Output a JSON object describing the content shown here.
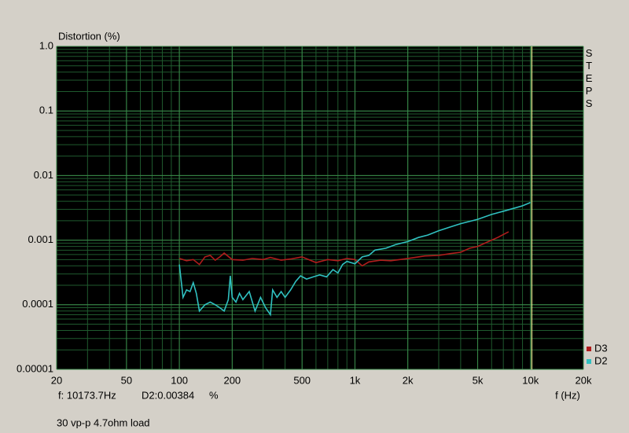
{
  "chart_data": {
    "type": "line",
    "title": "Distortion (%)",
    "xlabel": "f (Hz)",
    "side_label": "STEPS",
    "readout": [
      "f: 10173.7Hz",
      "D2:0.00384",
      "%"
    ],
    "note": "30 vp-p 4.7ohm load",
    "log_x": true,
    "log_y": true,
    "grid": true,
    "legend": "lower right",
    "cursor_x": 10173.7,
    "cursor_color": "#e8e890",
    "xlim": [
      20,
      20000
    ],
    "xticks": [
      20,
      50,
      100,
      200,
      500,
      {
        "value": 1000,
        "label": "1k"
      },
      {
        "value": 2000,
        "label": "2k"
      },
      {
        "value": 5000,
        "label": "5k"
      },
      {
        "value": 10000,
        "label": "10k"
      },
      {
        "value": 20000,
        "label": "20k"
      }
    ],
    "ylim": [
      1e-05,
      1
    ],
    "yticks": [
      {
        "value": 1,
        "label": "1.0"
      },
      0.1,
      0.01,
      0.001,
      0.0001,
      1e-05
    ],
    "series": [
      {
        "name": "D3",
        "color": "#b01c1c",
        "x": [
          100,
          110,
          120,
          130,
          140,
          150,
          160,
          170,
          180,
          200,
          230,
          260,
          300,
          330,
          380,
          430,
          500,
          600,
          700,
          800,
          900,
          1000,
          1100,
          1200,
          1400,
          1600,
          1800,
          2000,
          2500,
          3000,
          3500,
          4000,
          4500,
          5000,
          5500,
          6000,
          6500,
          7500
        ],
        "values": [
          0.00052,
          0.00048,
          0.0005,
          0.00042,
          0.00055,
          0.00058,
          0.00049,
          0.00055,
          0.00063,
          0.0005,
          0.00049,
          0.00052,
          0.0005,
          0.00054,
          0.00049,
          0.00051,
          0.00055,
          0.00045,
          0.0005,
          0.00048,
          0.00052,
          0.0005,
          0.0004,
          0.00046,
          0.00049,
          0.00048,
          0.0005,
          0.00052,
          0.00057,
          0.00058,
          0.00062,
          0.00065,
          0.00075,
          0.0008,
          0.0009,
          0.001,
          0.0011,
          0.00135
        ]
      },
      {
        "name": "D2",
        "color": "#30c0c0",
        "x": [
          100,
          105,
          110,
          115,
          120,
          125,
          130,
          140,
          150,
          160,
          170,
          180,
          190,
          195,
          200,
          210,
          220,
          230,
          250,
          270,
          290,
          310,
          330,
          340,
          360,
          380,
          400,
          430,
          460,
          490,
          530,
          580,
          630,
          690,
          750,
          800,
          850,
          900,
          1000,
          1100,
          1200,
          1300,
          1500,
          1700,
          2000,
          2300,
          2600,
          3000,
          3500,
          4000,
          5000,
          6000,
          7000,
          8000,
          9000,
          10000
        ],
        "values": [
          0.00042,
          0.00013,
          0.00017,
          0.00016,
          0.00022,
          0.00015,
          8e-05,
          0.0001,
          0.00011,
          0.0001,
          9e-05,
          8e-05,
          0.00012,
          0.00028,
          0.00013,
          0.00011,
          0.00015,
          0.00012,
          0.00016,
          8e-05,
          0.00013,
          9e-05,
          7e-05,
          0.00017,
          0.00013,
          0.00016,
          0.00013,
          0.00017,
          0.00023,
          0.00028,
          0.00025,
          0.00027,
          0.00029,
          0.00027,
          0.00035,
          0.00031,
          0.00042,
          0.00047,
          0.00043,
          0.00055,
          0.00058,
          0.0007,
          0.00075,
          0.00085,
          0.00095,
          0.0011,
          0.0012,
          0.0014,
          0.0016,
          0.0018,
          0.0021,
          0.0025,
          0.0028,
          0.0031,
          0.0034,
          0.00384
        ]
      }
    ]
  }
}
